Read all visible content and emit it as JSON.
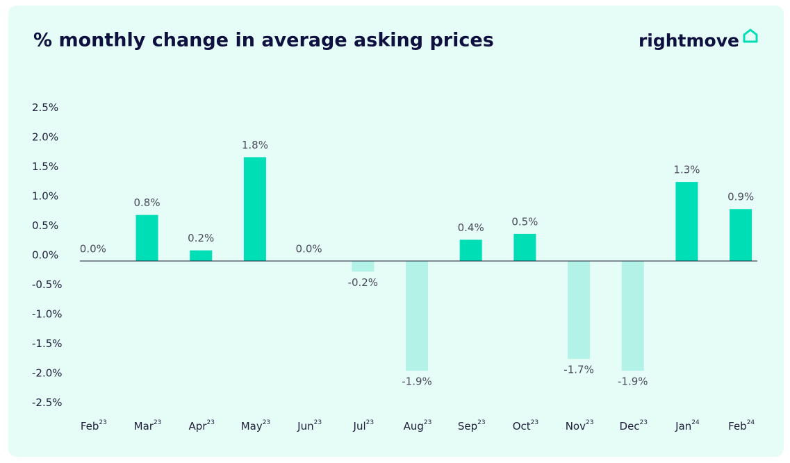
{
  "chart_data": {
    "type": "bar",
    "title": "% monthly change in average asking prices",
    "logo": "rightmove",
    "categories": [
      "Feb",
      "Mar",
      "Apr",
      "May",
      "Jun",
      "Jul",
      "Aug",
      "Sep",
      "Oct",
      "Nov",
      "Dec",
      "Jan",
      "Feb"
    ],
    "category_superscripts": [
      "23",
      "23",
      "23",
      "23",
      "23",
      "23",
      "23",
      "23",
      "23",
      "23",
      "23",
      "24",
      "24"
    ],
    "values": [
      0,
      0.78,
      0.18,
      1.76,
      0,
      -0.18,
      -1.86,
      0.36,
      0.46,
      -1.66,
      -1.86,
      1.34,
      0.88
    ],
    "value_labels": [
      "0.0%",
      "0.8%",
      "0.2%",
      "1.8%",
      "0.0%",
      "-0.2%",
      "-1.9%",
      "0.4%",
      "0.5%",
      "-1.7%",
      "-1.9%",
      "1.3%",
      "0.9%"
    ],
    "positive_color": "#00deb6",
    "negative_color": "#b3f2e6",
    "ylim": [
      -2.6,
      2.6
    ],
    "yticks": [
      {
        "value": 2.5,
        "label": "2.5%"
      },
      {
        "value": 2,
        "label": "2.0%"
      },
      {
        "value": 1.5,
        "label": "1.5%"
      },
      {
        "value": 1,
        "label": "1.0%"
      },
      {
        "value": 0.5,
        "label": "0.5%"
      },
      {
        "value": 0,
        "label": "0.0%"
      },
      {
        "value": -0.5,
        "label": "-0.5%"
      },
      {
        "value": -1,
        "label": "-1.0%"
      },
      {
        "value": -1.5,
        "label": "-1.5%"
      },
      {
        "value": -2,
        "label": "-2.0%"
      },
      {
        "value": -2.5,
        "label": "-2.5%"
      }
    ],
    "grid": false
  }
}
